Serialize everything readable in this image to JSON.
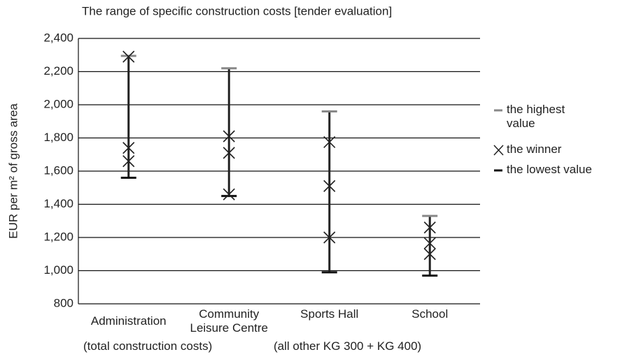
{
  "chart_data": {
    "type": "range",
    "title": "The range of specific construction costs [tender evaluation]",
    "y_label": "EUR per m² of gross area",
    "categories": [
      "Administration",
      "Community Leisure Centre",
      "Sports Hall",
      "School"
    ],
    "annotations": [
      "(total construction costs)",
      "(all other KG 300 + KG 400)"
    ],
    "series": [
      {
        "name": "the highest value",
        "color": "#888888",
        "values": [
          2295,
          2220,
          1960,
          1330
        ]
      },
      {
        "name": "the winner",
        "color": "#222222",
        "values": [
          [
            2290,
            1740,
            1660
          ],
          [
            1810,
            1710,
            1460
          ],
          [
            1775,
            1510,
            1200
          ],
          [
            1260,
            1165,
            1100
          ]
        ]
      },
      {
        "name": "the lowest value",
        "color": "#111111",
        "values": [
          1560,
          1450,
          990,
          970
        ]
      }
    ],
    "ylim": [
      800,
      2400
    ],
    "yticks": [
      {
        "value": 800,
        "label": "800"
      },
      {
        "value": 1000,
        "label": "1,000"
      },
      {
        "value": 1200,
        "label": "1,200"
      },
      {
        "value": 1400,
        "label": "1,400"
      },
      {
        "value": 1600,
        "label": "1,600"
      },
      {
        "value": 1800,
        "label": "1,800"
      },
      {
        "value": 2000,
        "label": "2,000"
      },
      {
        "value": 2200,
        "label": "2,200"
      },
      {
        "value": 2400,
        "label": "2,400"
      }
    ],
    "grid": true,
    "legend": "right"
  }
}
